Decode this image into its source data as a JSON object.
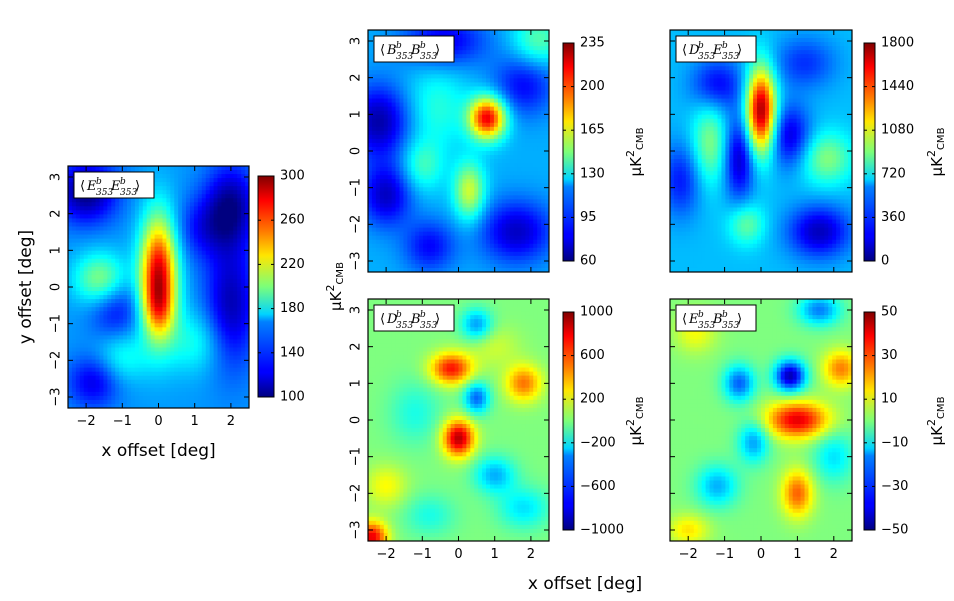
{
  "figure": {
    "shared_xlabel": "x offset [deg]"
  },
  "colormap": "jet",
  "chart_data": [
    {
      "type": "heatmap",
      "title": "⟨E353 E353⟩",
      "legend": {
        "pre": "⟨",
        "a_sym": "E",
        "a_sup": "b",
        "a_sub": "353",
        "b_sym": "E",
        "b_sup": "b",
        "b_sub": "353",
        "post": "⟩"
      },
      "xlabel": "x offset [deg]",
      "ylabel": "y offset [deg]",
      "xlim": [
        -2.5,
        2.5
      ],
      "ylim": [
        -3.3,
        3.3
      ],
      "xticks": [
        "−2",
        "−1",
        "0",
        "1",
        "2"
      ],
      "xtick_values": [
        -2,
        -1,
        0,
        1,
        2
      ],
      "yticks": [
        "−3",
        "−2",
        "−1",
        "0",
        "1",
        "2",
        "3"
      ],
      "ytick_values": [
        -3,
        -2,
        -1,
        0,
        1,
        2,
        3
      ],
      "clim": [
        100,
        300
      ],
      "colorbar_ticks": [
        "100",
        "140",
        "180",
        "220",
        "260",
        "300"
      ],
      "colorbar_tick_values": [
        100,
        140,
        180,
        220,
        260,
        300
      ],
      "colorbar_label": "μK²CMB",
      "field": {
        "base": 155,
        "blobs": [
          {
            "x": 0.0,
            "y": 0.3,
            "sx": 0.35,
            "sy": 1.1,
            "amp": 130
          },
          {
            "x": 0.0,
            "y": -0.6,
            "sx": 0.3,
            "sy": 0.5,
            "amp": 30
          },
          {
            "x": -1.6,
            "y": 0.2,
            "sx": 0.5,
            "sy": 0.5,
            "amp": 50
          },
          {
            "x": 1.0,
            "y": -1.5,
            "sx": 0.6,
            "sy": 0.6,
            "amp": 25
          },
          {
            "x": -1.0,
            "y": -1.9,
            "sx": 0.5,
            "sy": 0.5,
            "amp": 25
          },
          {
            "x": -2.0,
            "y": 2.6,
            "sx": 0.6,
            "sy": 0.6,
            "amp": -55
          },
          {
            "x": 2.0,
            "y": 2.2,
            "sx": 0.5,
            "sy": 0.8,
            "amp": -50
          },
          {
            "x": 2.0,
            "y": -0.5,
            "sx": 0.5,
            "sy": 1.2,
            "amp": -45
          },
          {
            "x": -1.2,
            "y": -0.6,
            "sx": 0.5,
            "sy": 0.6,
            "amp": -30
          },
          {
            "x": -1.8,
            "y": -2.6,
            "sx": 0.5,
            "sy": 0.5,
            "amp": -35
          },
          {
            "x": 1.2,
            "y": 1.6,
            "sx": 0.5,
            "sy": 0.6,
            "amp": -25
          }
        ]
      }
    },
    {
      "type": "heatmap",
      "title": "⟨B353 B353⟩",
      "legend": {
        "pre": "⟨",
        "a_sym": "B",
        "a_sup": "b",
        "a_sub": "353",
        "b_sym": "B",
        "b_sup": "b",
        "b_sub": "353",
        "post": "⟩"
      },
      "xlim": [
        -2.5,
        2.5
      ],
      "ylim": [
        -3.3,
        3.3
      ],
      "yticks": [
        "−3",
        "−2",
        "−1",
        "0",
        "1",
        "2",
        "3"
      ],
      "ytick_values": [
        -3,
        -2,
        -1,
        0,
        1,
        2,
        3
      ],
      "clim": [
        60,
        235
      ],
      "colorbar_ticks": [
        "60",
        "95",
        "130",
        "165",
        "200",
        "235"
      ],
      "colorbar_tick_values": [
        60,
        95,
        130,
        165,
        200,
        235
      ],
      "colorbar_label": "μK²CMB",
      "field": {
        "base": 112,
        "blobs": [
          {
            "x": 0.8,
            "y": 0.9,
            "sx": 0.35,
            "sy": 0.4,
            "amp": 105
          },
          {
            "x": 0.3,
            "y": -1.1,
            "sx": 0.3,
            "sy": 0.55,
            "amp": 50
          },
          {
            "x": -0.6,
            "y": 1.2,
            "sx": 0.6,
            "sy": 0.8,
            "amp": 20
          },
          {
            "x": -2.2,
            "y": 0.8,
            "sx": 0.6,
            "sy": 0.7,
            "amp": -45
          },
          {
            "x": -2.0,
            "y": -1.2,
            "sx": 0.5,
            "sy": 0.6,
            "amp": -40
          },
          {
            "x": -0.4,
            "y": 3.0,
            "sx": 0.8,
            "sy": 0.5,
            "amp": -35
          },
          {
            "x": 1.6,
            "y": -2.2,
            "sx": 0.7,
            "sy": 0.6,
            "amp": -40
          },
          {
            "x": 1.8,
            "y": 1.8,
            "sx": 0.6,
            "sy": 0.6,
            "amp": -30
          },
          {
            "x": -0.8,
            "y": -2.6,
            "sx": 0.5,
            "sy": 0.5,
            "amp": -30
          },
          {
            "x": -1.0,
            "y": -0.4,
            "sx": 0.4,
            "sy": 0.5,
            "amp": 25
          },
          {
            "x": 2.2,
            "y": 3.0,
            "sx": 0.5,
            "sy": 0.5,
            "amp": 30
          }
        ]
      }
    },
    {
      "type": "heatmap",
      "title": "⟨D353 E353⟩",
      "legend": {
        "pre": "⟨",
        "a_sym": "D",
        "a_sup": "b",
        "a_sub": "353",
        "b_sym": "E",
        "b_sup": "b",
        "b_sub": "353",
        "post": "⟩"
      },
      "xlim": [
        -2.5,
        2.5
      ],
      "ylim": [
        -3.3,
        3.3
      ],
      "clim": [
        0,
        1800
      ],
      "colorbar_ticks": [
        "0",
        "360",
        "720",
        "1080",
        "1440",
        "1800"
      ],
      "colorbar_tick_values": [
        0,
        360,
        720,
        1080,
        1440,
        1800
      ],
      "colorbar_label": "μK²CMB",
      "field": {
        "base": 560,
        "blobs": [
          {
            "x": 0.0,
            "y": 1.1,
            "sx": 0.28,
            "sy": 0.8,
            "amp": 1200
          },
          {
            "x": -1.4,
            "y": 0.2,
            "sx": 0.35,
            "sy": 0.8,
            "amp": 350
          },
          {
            "x": 1.8,
            "y": -0.2,
            "sx": 0.5,
            "sy": 0.5,
            "amp": 350
          },
          {
            "x": -0.4,
            "y": -2.0,
            "sx": 0.35,
            "sy": 0.4,
            "amp": 300
          },
          {
            "x": -1.2,
            "y": 1.8,
            "sx": 0.5,
            "sy": 0.5,
            "amp": -350
          },
          {
            "x": -0.6,
            "y": -0.2,
            "sx": 0.3,
            "sy": 0.8,
            "amp": -450
          },
          {
            "x": 0.8,
            "y": 0.4,
            "sx": 0.4,
            "sy": 0.6,
            "amp": -400
          },
          {
            "x": 1.6,
            "y": -2.2,
            "sx": 0.6,
            "sy": 0.5,
            "amp": -450
          },
          {
            "x": -2.2,
            "y": -0.8,
            "sx": 0.4,
            "sy": 0.7,
            "amp": -300
          },
          {
            "x": 1.2,
            "y": 2.4,
            "sx": 0.6,
            "sy": 0.5,
            "amp": -250
          }
        ]
      }
    },
    {
      "type": "heatmap",
      "title": "⟨D353 B353⟩",
      "legend": {
        "pre": "⟨",
        "a_sym": "D",
        "a_sup": "b",
        "a_sub": "353",
        "b_sym": "B",
        "b_sup": "b",
        "b_sub": "353",
        "post": "⟩"
      },
      "xlim": [
        -2.5,
        2.5
      ],
      "ylim": [
        -3.3,
        3.3
      ],
      "xticks": [
        "−2",
        "−1",
        "0",
        "1",
        "2"
      ],
      "xtick_values": [
        -2,
        -1,
        0,
        1,
        2
      ],
      "yticks": [
        "−3",
        "−2",
        "−1",
        "0",
        "1",
        "2",
        "3"
      ],
      "ytick_values": [
        -3,
        -2,
        -1,
        0,
        1,
        2,
        3
      ],
      "clim": [
        -1000,
        1000
      ],
      "colorbar_ticks": [
        "−1000",
        "−600",
        "−200",
        "200",
        "600",
        "1000"
      ],
      "colorbar_tick_values": [
        -1000,
        -600,
        -200,
        200,
        600,
        1000
      ],
      "colorbar_label": "μK²CMB",
      "field": {
        "base": 0,
        "blobs": [
          {
            "x": -0.2,
            "y": 1.4,
            "sx": 0.4,
            "sy": 0.3,
            "amp": 720
          },
          {
            "x": 0.0,
            "y": -0.5,
            "sx": 0.3,
            "sy": 0.35,
            "amp": 900
          },
          {
            "x": 1.8,
            "y": 1.0,
            "sx": 0.35,
            "sy": 0.35,
            "amp": 520
          },
          {
            "x": -2.4,
            "y": -3.2,
            "sx": 0.3,
            "sy": 0.3,
            "amp": 800
          },
          {
            "x": -2.0,
            "y": -1.8,
            "sx": 0.4,
            "sy": 0.4,
            "amp": 250
          },
          {
            "x": 0.5,
            "y": 0.6,
            "sx": 0.25,
            "sy": 0.3,
            "amp": -550
          },
          {
            "x": 0.5,
            "y": 2.6,
            "sx": 0.3,
            "sy": 0.3,
            "amp": -450
          },
          {
            "x": 1.0,
            "y": -1.5,
            "sx": 0.4,
            "sy": 0.35,
            "amp": -400
          },
          {
            "x": 1.8,
            "y": -2.4,
            "sx": 0.5,
            "sy": 0.4,
            "amp": -300
          },
          {
            "x": -1.2,
            "y": 0.2,
            "sx": 0.5,
            "sy": 0.6,
            "amp": -200
          },
          {
            "x": -0.8,
            "y": -2.6,
            "sx": 0.5,
            "sy": 0.4,
            "amp": -200
          },
          {
            "x": 1.0,
            "y": 2.0,
            "sx": 0.5,
            "sy": 0.4,
            "amp": 150
          }
        ]
      }
    },
    {
      "type": "heatmap",
      "title": "⟨E353 B353⟩",
      "legend": {
        "pre": "⟨",
        "a_sym": "E",
        "a_sup": "b",
        "a_sub": "353",
        "b_sym": "B",
        "b_sup": "b",
        "b_sub": "353",
        "post": "⟩"
      },
      "xlim": [
        -2.5,
        2.5
      ],
      "ylim": [
        -3.3,
        3.3
      ],
      "xticks": [
        "−2",
        "−1",
        "0",
        "1",
        "2"
      ],
      "xtick_values": [
        -2,
        -1,
        0,
        1,
        2
      ],
      "clim": [
        -50,
        50
      ],
      "colorbar_ticks": [
        "−50",
        "−30",
        "−10",
        "10",
        "30",
        "50"
      ],
      "colorbar_tick_values": [
        -50,
        -30,
        -10,
        10,
        30,
        50
      ],
      "colorbar_label": "μK²CMB",
      "field": {
        "base": 0,
        "blobs": [
          {
            "x": 1.0,
            "y": 0.0,
            "sx": 0.6,
            "sy": 0.35,
            "amp": 40
          },
          {
            "x": 1.0,
            "y": -2.0,
            "sx": 0.3,
            "sy": 0.45,
            "amp": 28
          },
          {
            "x": 2.2,
            "y": 1.4,
            "sx": 0.35,
            "sy": 0.35,
            "amp": 25
          },
          {
            "x": 0.8,
            "y": 1.2,
            "sx": 0.3,
            "sy": 0.3,
            "amp": -45
          },
          {
            "x": -0.6,
            "y": 1.0,
            "sx": 0.3,
            "sy": 0.35,
            "amp": -28
          },
          {
            "x": -0.2,
            "y": -0.6,
            "sx": 0.3,
            "sy": 0.4,
            "amp": -22
          },
          {
            "x": 1.6,
            "y": 3.0,
            "sx": 0.4,
            "sy": 0.3,
            "amp": -25
          },
          {
            "x": -1.2,
            "y": -1.8,
            "sx": 0.4,
            "sy": 0.4,
            "amp": -20
          },
          {
            "x": -1.8,
            "y": 2.4,
            "sx": 0.4,
            "sy": 0.4,
            "amp": 12
          },
          {
            "x": -2.0,
            "y": -3.0,
            "sx": 0.4,
            "sy": 0.3,
            "amp": 15
          },
          {
            "x": 2.0,
            "y": -1.0,
            "sx": 0.4,
            "sy": 0.5,
            "amp": -15
          }
        ]
      }
    }
  ]
}
